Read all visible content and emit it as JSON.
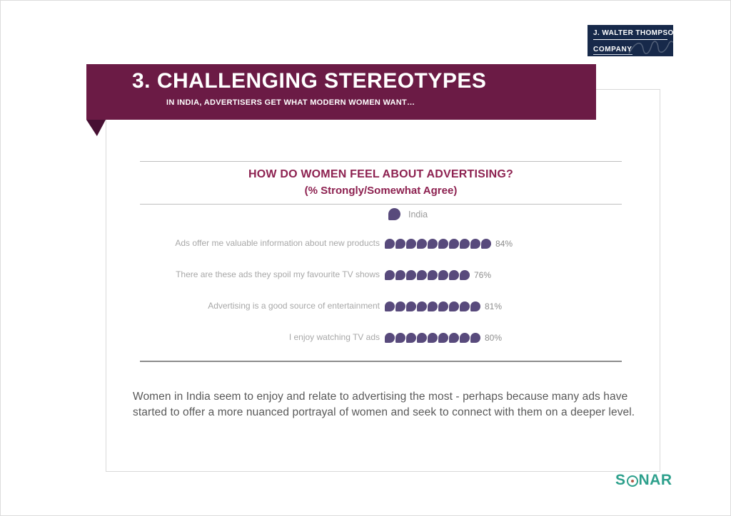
{
  "page": {
    "jwt_logo": {
      "line1": "J. WALTER THOMPSON",
      "line2": "COMPANY"
    },
    "banner": {
      "title": "3. CHALLENGING STEREOTYPES",
      "subtitle": "IN INDIA, ADVERTISERS GET WHAT MODERN WOMEN WANT…"
    },
    "commentary": "Women in India seem to enjoy and relate to advertising the most - perhaps because many ads have started to offer a more nuanced portrayal of women and seek to connect with them on a deeper level.",
    "sonar_logo": {
      "full": "SONAR",
      "prefix": "S",
      "suffix": "NAR"
    }
  },
  "chart_data": {
    "type": "bar",
    "variant": "pictogram-dots",
    "title": "HOW DO WOMEN FEEL ABOUT ADVERTISING?",
    "subtitle": "(% Strongly/Somewhat Agree)",
    "legend": [
      {
        "label": "India",
        "color": "#584a7c"
      }
    ],
    "legend_position": "top-center",
    "categories": [
      "Ads offer me valuable information about new products",
      "There are these ads they spoil my favourite TV shows",
      "Advertising is a good source of entertainment",
      "I enjoy watching TV ads"
    ],
    "values": [
      84,
      76,
      81,
      80
    ],
    "unit": "%",
    "value_labels": [
      "84%",
      "76%",
      "81%",
      "80%"
    ],
    "dot_counts": [
      10,
      8,
      9,
      9
    ],
    "xlim": [
      0,
      100
    ],
    "grid": false
  },
  "colors": {
    "banner_maroon": "#6b1b45",
    "banner_fold": "#471033",
    "chart_title_maroon": "#8d2150",
    "dot_purple": "#584a7c",
    "label_gray": "#a8a8a8",
    "value_gray": "#8c8c8c",
    "body_gray": "#595959",
    "jwt_navy": "#17294a",
    "sonar_teal": "#2da08c"
  }
}
